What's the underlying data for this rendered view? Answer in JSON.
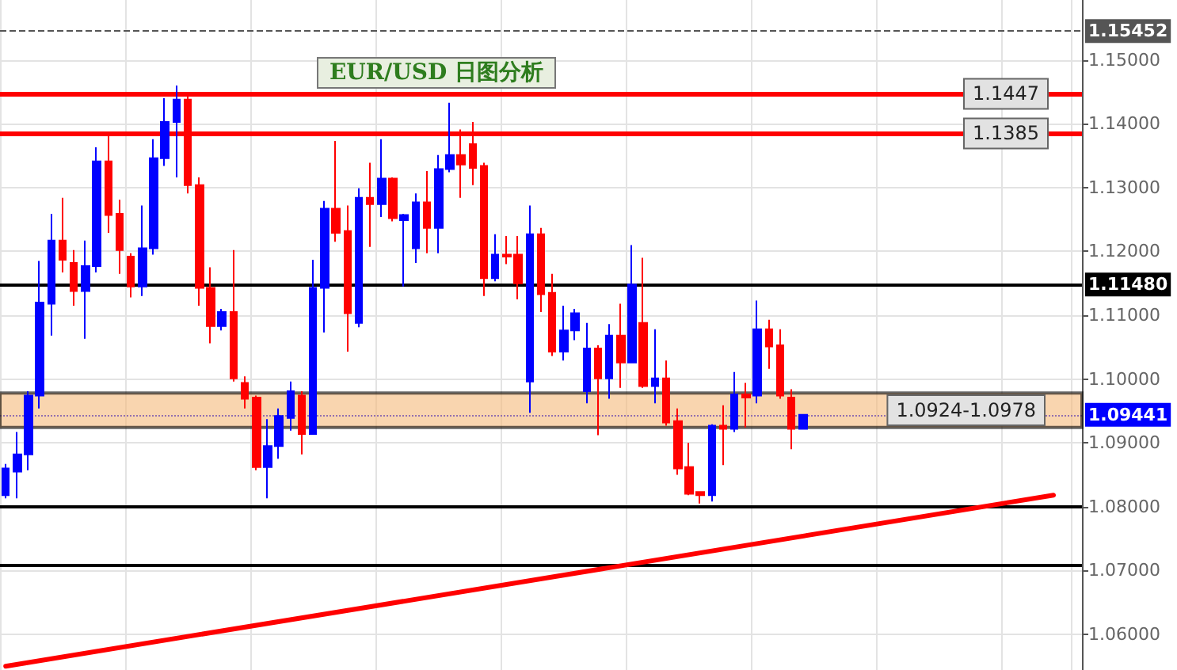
{
  "chart_data": {
    "type": "candlestick",
    "title": "EUR/USD 日图分析",
    "categories": [
      null,
      null,
      null,
      null,
      null,
      null,
      null,
      null,
      null,
      null,
      null,
      null,
      null,
      null,
      null,
      null,
      null,
      null,
      null,
      null,
      null,
      null,
      null,
      null,
      null,
      null,
      null,
      null,
      null,
      null,
      null,
      null,
      null,
      null,
      null,
      null,
      null,
      null,
      null,
      null,
      null,
      null,
      null,
      null,
      null,
      null,
      null,
      null,
      null,
      null,
      null,
      null,
      null,
      null,
      null,
      null,
      null,
      null,
      null,
      null,
      null,
      null,
      null,
      null,
      null,
      null,
      null,
      null,
      null,
      null,
      null,
      null,
      null,
      null,
      null,
      null,
      null,
      null,
      null,
      null,
      null,
      null,
      null,
      null,
      null,
      null,
      null,
      null,
      null,
      null,
      null,
      null,
      null,
      null,
      null
    ],
    "ohlc": [
      [
        1.0818,
        1.0867,
        1.0813,
        1.086
      ],
      [
        1.0855,
        1.0917,
        1.0813,
        1.0882
      ],
      [
        1.0882,
        1.0981,
        1.0857,
        1.0974
      ],
      [
        1.0974,
        1.1185,
        1.0954,
        1.112
      ],
      [
        1.1118,
        1.1259,
        1.1068,
        1.1217
      ],
      [
        1.1217,
        1.1284,
        1.1167,
        1.1187
      ],
      [
        1.1182,
        1.1202,
        1.1115,
        1.1138
      ],
      [
        1.1138,
        1.1217,
        1.1063,
        1.1177
      ],
      [
        1.1177,
        1.1363,
        1.1167,
        1.1341
      ],
      [
        1.1341,
        1.1386,
        1.1229,
        1.1257
      ],
      [
        1.1259,
        1.1281,
        1.1165,
        1.1202
      ],
      [
        1.1192,
        1.1197,
        1.1128,
        1.1145
      ],
      [
        1.1145,
        1.1272,
        1.113,
        1.1205
      ],
      [
        1.1205,
        1.1376,
        1.1195,
        1.1346
      ],
      [
        1.1346,
        1.144,
        1.1334,
        1.1403
      ],
      [
        1.1403,
        1.146,
        1.1316,
        1.1438
      ],
      [
        1.1438,
        1.1443,
        1.1291,
        1.1304
      ],
      [
        1.1304,
        1.1316,
        1.1115,
        1.1143
      ],
      [
        1.1143,
        1.1175,
        1.1056,
        1.1083
      ],
      [
        1.1083,
        1.111,
        1.1076,
        1.1105
      ],
      [
        1.1105,
        1.1202,
        1.0996,
        1.1001
      ],
      [
        1.0994,
        1.1004,
        1.0954,
        1.0969
      ],
      [
        1.0971,
        1.0974,
        1.0857,
        1.0862
      ],
      [
        1.0862,
        1.0937,
        1.0813,
        1.0895
      ],
      [
        1.0895,
        1.0954,
        1.0875,
        1.0942
      ],
      [
        1.0939,
        1.0996,
        1.0919,
        1.0981
      ],
      [
        1.0974,
        1.0981,
        1.0882,
        1.0914
      ],
      [
        1.0914,
        1.1187,
        1.0914,
        1.1143
      ],
      [
        1.1143,
        1.1279,
        1.1073,
        1.1267
      ],
      [
        1.1267,
        1.1373,
        1.1215,
        1.1229
      ],
      [
        1.1232,
        1.1272,
        1.1043,
        1.1103
      ],
      [
        1.1088,
        1.1299,
        1.1081,
        1.1284
      ],
      [
        1.1284,
        1.1339,
        1.1207,
        1.1274
      ],
      [
        1.1274,
        1.1376,
        1.1254,
        1.1314
      ],
      [
        1.1314,
        1.1316,
        1.1247,
        1.1252
      ],
      [
        1.1249,
        1.1259,
        1.1145,
        1.1257
      ],
      [
        1.1205,
        1.1291,
        1.1182,
        1.1277
      ],
      [
        1.1277,
        1.1326,
        1.1197,
        1.1237
      ],
      [
        1.1237,
        1.1351,
        1.1197,
        1.1329
      ],
      [
        1.1329,
        1.1433,
        1.1324,
        1.1351
      ],
      [
        1.1351,
        1.1391,
        1.1284,
        1.1336
      ],
      [
        1.1368,
        1.1403,
        1.1304,
        1.1331
      ],
      [
        1.1334,
        1.1339,
        1.113,
        1.1158
      ],
      [
        1.1158,
        1.1227,
        1.1153,
        1.1195
      ],
      [
        1.1195,
        1.1224,
        1.118,
        1.1192
      ],
      [
        1.1195,
        1.1224,
        1.1125,
        1.115
      ],
      [
        1.0996,
        1.1272,
        1.0947,
        1.1227
      ],
      [
        1.1227,
        1.1237,
        1.1105,
        1.1133
      ],
      [
        1.1135,
        1.1165,
        1.1036,
        1.1043
      ],
      [
        1.1043,
        1.1115,
        1.1029,
        1.1076
      ],
      [
        1.1076,
        1.111,
        1.1061,
        1.1103
      ],
      [
        1.0981,
        1.1088,
        1.0962,
        1.1048
      ],
      [
        1.1048,
        1.1053,
        1.0912,
        1.1001
      ],
      [
        1.1001,
        1.1086,
        1.0969,
        1.1068
      ],
      [
        1.1068,
        1.1118,
        1.0986,
        1.1026
      ],
      [
        1.1026,
        1.121,
        1.1026,
        1.1148
      ],
      [
        1.1088,
        1.119,
        1.0986,
        1.0989
      ],
      [
        1.0989,
        1.1078,
        1.0962,
        1.1001
      ],
      [
        1.1001,
        1.1029,
        1.0927,
        1.0932
      ],
      [
        1.0934,
        1.0954,
        1.085,
        1.086
      ],
      [
        1.0862,
        1.09,
        1.0818,
        1.082
      ],
      [
        1.0823,
        1.0823,
        1.0805,
        1.0818
      ],
      [
        1.0818,
        1.0929,
        1.0808,
        1.0927
      ],
      [
        1.0927,
        1.0959,
        1.0865,
        1.0922
      ],
      [
        1.0922,
        1.1011,
        1.0917,
        1.0976
      ],
      [
        1.0976,
        1.0994,
        1.0924,
        1.0971
      ],
      [
        1.0974,
        1.1123,
        1.0962,
        1.1078
      ],
      [
        1.1078,
        1.1093,
        1.1016,
        1.1051
      ],
      [
        1.1053,
        1.1078,
        1.0969,
        1.0974
      ],
      [
        1.0971,
        1.0984,
        1.089,
        1.0922
      ],
      [
        1.0922,
        1.0944,
        1.0922,
        1.0944
      ],
      null,
      null,
      null,
      null,
      null,
      null,
      null,
      null,
      null,
      null,
      null,
      null,
      null,
      null,
      null,
      null,
      null,
      null,
      null,
      null,
      null,
      null,
      null,
      null
    ],
    "colors": [
      "#0000ff",
      "#0000ff",
      "#0000ff",
      "#0000ff",
      "#0000ff",
      "#ff0000",
      "#ff0000",
      "#0000ff",
      "#0000ff",
      "#ff0000",
      "#ff0000",
      "#ff0000",
      "#0000ff",
      "#0000ff",
      "#0000ff",
      "#0000ff",
      "#ff0000",
      "#ff0000",
      "#ff0000",
      "#0000ff",
      "#ff0000",
      "#ff0000",
      "#ff0000",
      "#0000ff",
      "#0000ff",
      "#0000ff",
      "#ff0000",
      "#0000ff",
      "#0000ff",
      "#ff0000",
      "#ff0000",
      "#0000ff",
      "#ff0000",
      "#0000ff",
      "#ff0000",
      "#0000ff",
      "#0000ff",
      "#ff0000",
      "#0000ff",
      "#0000ff",
      "#ff0000",
      "#ff0000",
      "#ff0000",
      "#0000ff",
      "#ff0000",
      "#ff0000",
      "#0000ff",
      "#ff0000",
      "#ff0000",
      "#0000ff",
      "#0000ff",
      "#0000ff",
      "#ff0000",
      "#0000ff",
      "#ff0000",
      "#0000ff",
      "#ff0000",
      "#0000ff",
      "#ff0000",
      "#ff0000",
      "#ff0000",
      "#ff0000",
      "#0000ff",
      "#ff0000",
      "#0000ff",
      "#ff0000",
      "#0000ff",
      "#ff0000",
      "#ff0000",
      "#ff0000",
      "#0000ff",
      null,
      null,
      null,
      null,
      null,
      null,
      null,
      null,
      null,
      null,
      null,
      null,
      null,
      null,
      null,
      null,
      null,
      null,
      null,
      null,
      null,
      null,
      null,
      null
    ],
    "series": [
      {
        "type": "line",
        "color": "#ff0000",
        "values": [
          1.055,
          null,
          null,
          null,
          null,
          null,
          null,
          null,
          null,
          null,
          null,
          null,
          null,
          null,
          null,
          null,
          null,
          null,
          null,
          null,
          null,
          null,
          null,
          null,
          null,
          null,
          null,
          null,
          null,
          null,
          null,
          null,
          null,
          null,
          null,
          null,
          null,
          null,
          null,
          null,
          null,
          null,
          null,
          null,
          null,
          null,
          null,
          null,
          null,
          null,
          null,
          null,
          null,
          null,
          null,
          null,
          null,
          null,
          null,
          null,
          null,
          null,
          null,
          null,
          null,
          null,
          null,
          null,
          null,
          null,
          null,
          null,
          null,
          null,
          null,
          null,
          null,
          null,
          null,
          null,
          null,
          null,
          null,
          null,
          null,
          null,
          null,
          null,
          null,
          null,
          null,
          null,
          1.0818,
          null,
          null
        ]
      }
    ],
    "ylim": [
      1.0544,
      1.1594
    ],
    "yticks": [
      {
        "value": 1.06,
        "label": "1.06000"
      },
      {
        "value": 1.07,
        "label": "1.07000"
      },
      {
        "value": 1.08,
        "label": "1.08000"
      },
      {
        "value": 1.09,
        "label": "1.09000"
      },
      {
        "value": 1.1,
        "label": "1.10000"
      },
      {
        "value": 1.11,
        "label": "1.11000"
      },
      {
        "value": 1.12,
        "label": "1.12000"
      },
      {
        "value": 1.13,
        "label": "1.13000"
      },
      {
        "value": 1.14,
        "label": "1.14000"
      },
      {
        "value": 1.15,
        "label": "1.15000"
      }
    ],
    "ref_lines": [
      {
        "axis": "y",
        "value": 1.1447,
        "label": "1.1447",
        "color": "#ff0000"
      },
      {
        "axis": "y",
        "value": 1.1385,
        "label": "1.1385",
        "color": "#ff0000"
      },
      {
        "axis": "y",
        "value": 1.1148,
        "label": "1.11480",
        "color": "#000000"
      },
      {
        "axis": "y",
        "value": 1.08,
        "color": "#000000"
      },
      {
        "axis": "y",
        "value": 1.0708,
        "color": "#000000"
      },
      {
        "axis": "y",
        "value": 1.09441,
        "label": "1.09441",
        "color": "#0000ff",
        "line_style": "dotted"
      },
      {
        "axis": "y",
        "value": 1.15452,
        "label": "1.15452",
        "color": "#555555",
        "line_style": "dashed"
      }
    ],
    "bands": [
      {
        "axis": "y",
        "from": 1.0924,
        "to": 1.0978,
        "label": "1.0924-1.0978",
        "color": "#f5b97a"
      }
    ],
    "grid": true,
    "tick_labels": "y"
  }
}
